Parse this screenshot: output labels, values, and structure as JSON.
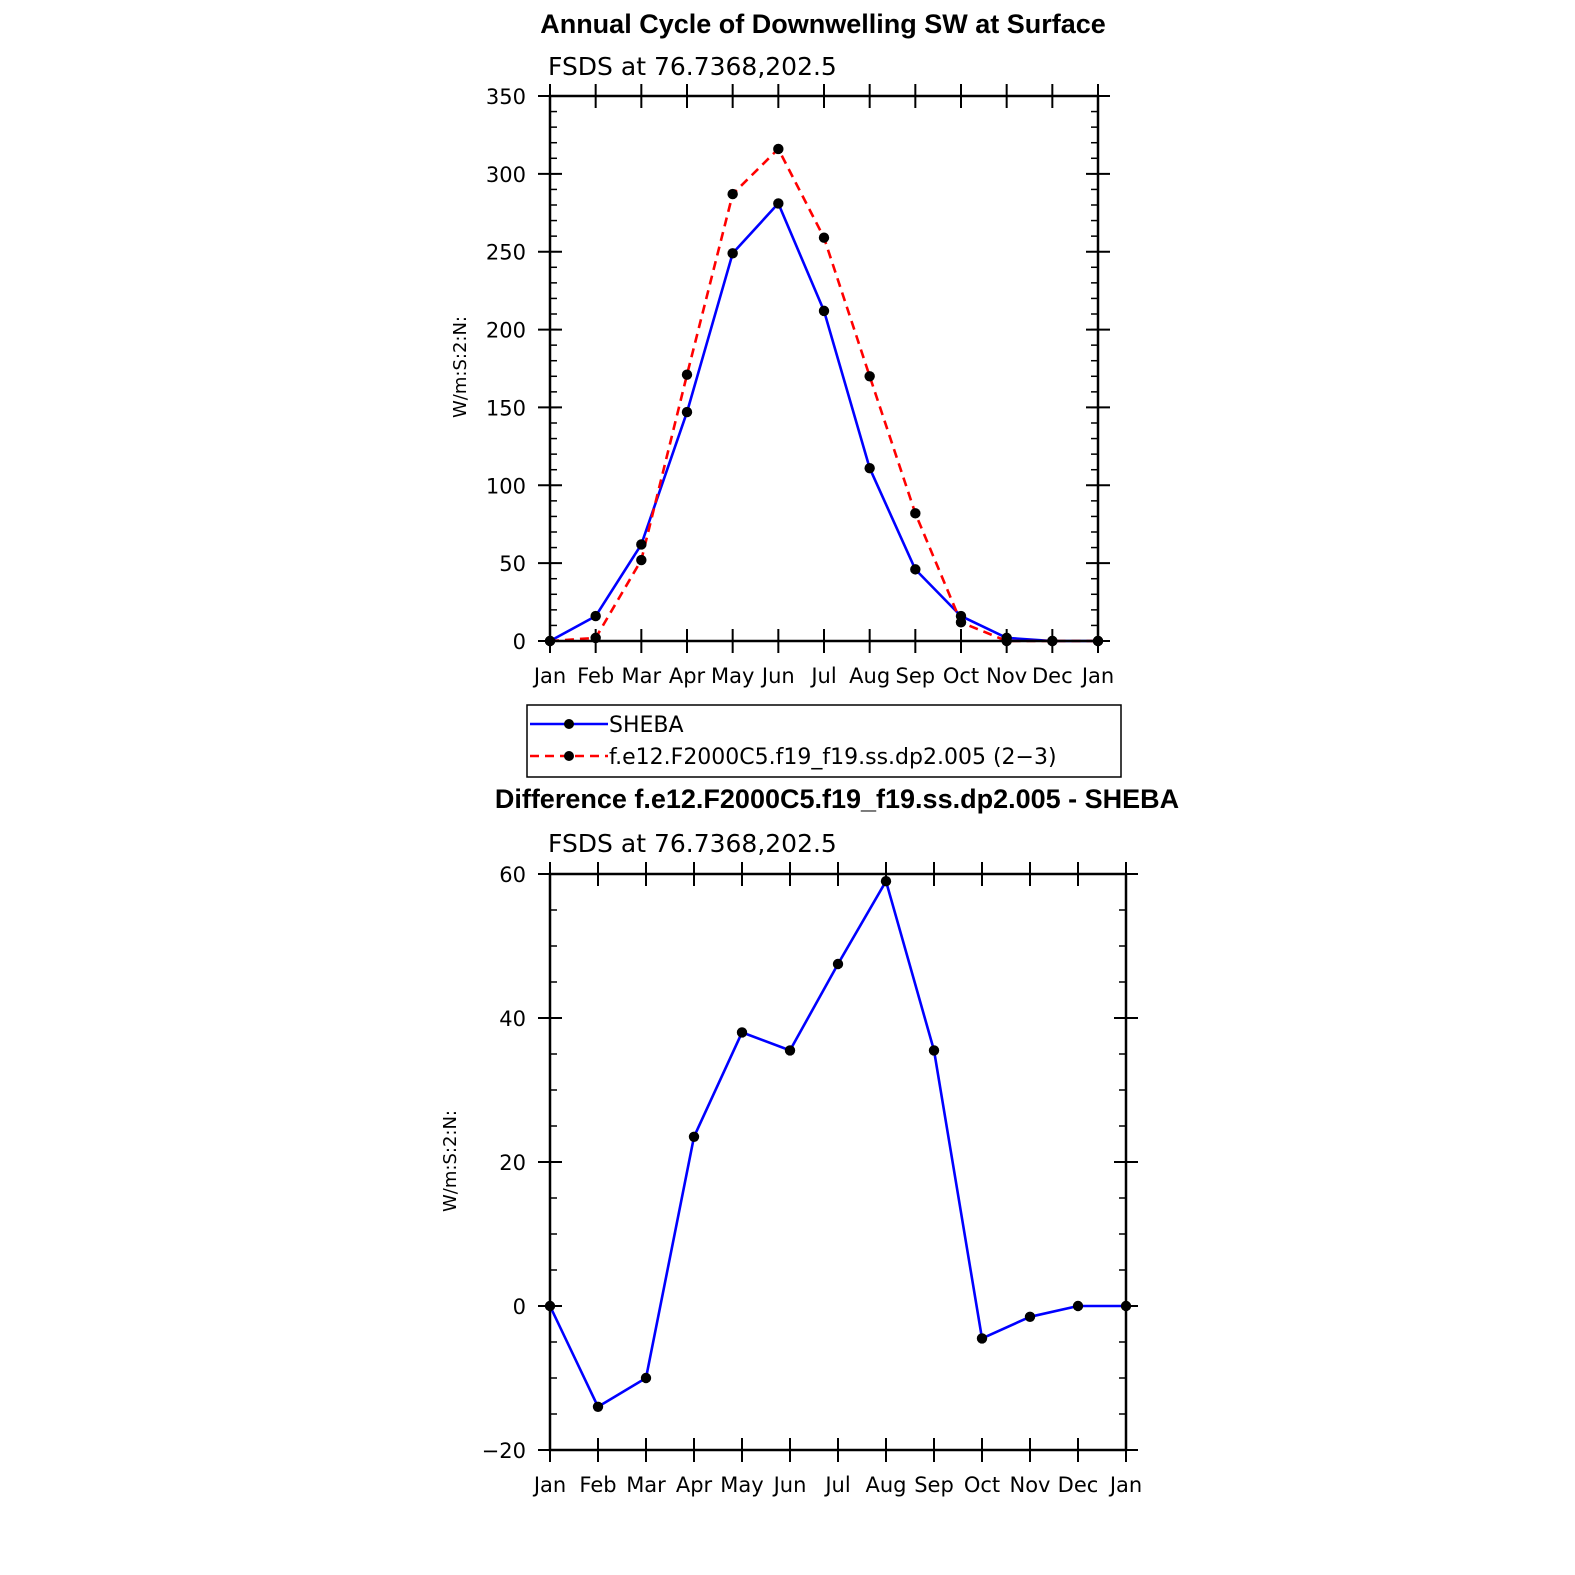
{
  "chart_data": [
    {
      "type": "line",
      "title": "Annual Cycle of Downwelling SW at Surface",
      "subtitle": "FSDS at 76.7368,202.5",
      "ylabel": "W/m:S:2:N:",
      "xlabel": "",
      "categories": [
        "Jan",
        "Feb",
        "Mar",
        "Apr",
        "May",
        "Jun",
        "Jul",
        "Aug",
        "Sep",
        "Oct",
        "Nov",
        "Dec",
        "Jan"
      ],
      "ylim": [
        0,
        350
      ],
      "yticks": [
        0,
        50,
        100,
        150,
        200,
        250,
        300,
        350
      ],
      "grid": false,
      "legend_position": "bottom",
      "series": [
        {
          "name": "SHEBA",
          "color": "#0000ff",
          "dash": "solid",
          "marker": "dot",
          "values": [
            0,
            16,
            62,
            147,
            249,
            281,
            212,
            111,
            46,
            16,
            2,
            0,
            0
          ]
        },
        {
          "name": "f.e12.F2000C5.f19_f19.ss.dp2.005 (2−3)",
          "color": "#ff0000",
          "dash": "dashed",
          "marker": "dot",
          "values": [
            0,
            2,
            52,
            171,
            287,
            316,
            259,
            170,
            82,
            12,
            0,
            0,
            0
          ]
        }
      ]
    },
    {
      "type": "line",
      "title": "Difference f.e12.F2000C5.f19_f19.ss.dp2.005 - SHEBA",
      "subtitle": "FSDS at 76.7368,202.5",
      "ylabel": "W/m:S:2:N:",
      "xlabel": "",
      "categories": [
        "Jan",
        "Feb",
        "Mar",
        "Apr",
        "May",
        "Jun",
        "Jul",
        "Aug",
        "Sep",
        "Oct",
        "Nov",
        "Dec",
        "Jan"
      ],
      "ylim": [
        -20,
        60
      ],
      "yticks": [
        -20,
        0,
        20,
        40,
        60
      ],
      "ytick_labels": [
        "−20",
        "0",
        "20",
        "40",
        "60"
      ],
      "grid": false,
      "series": [
        {
          "color": "#0000ff",
          "dash": "solid",
          "marker": "dot",
          "values": [
            0,
            -14,
            -10,
            23.5,
            38,
            35.5,
            47.5,
            59,
            35.5,
            -4.5,
            -1.5,
            0,
            0
          ]
        }
      ]
    }
  ]
}
